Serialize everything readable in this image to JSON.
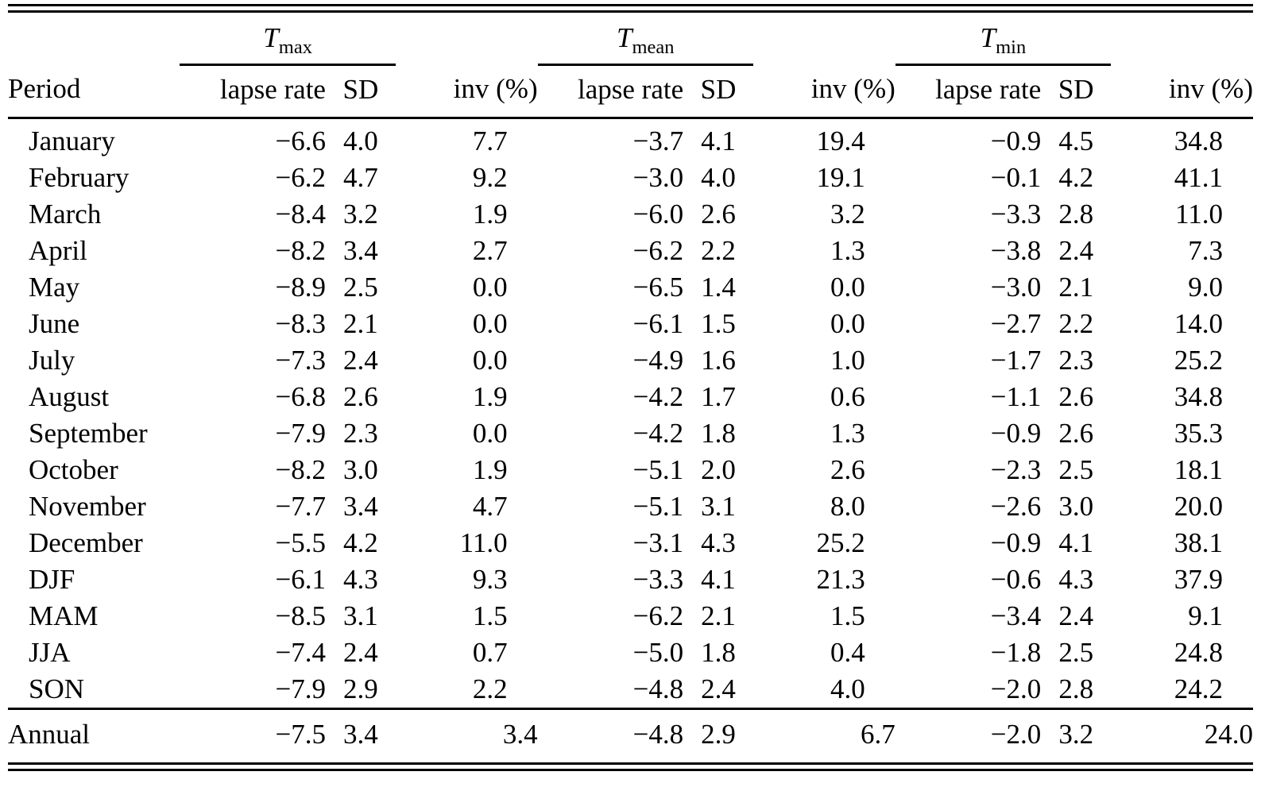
{
  "page": {
    "background": "#ffffff",
    "text_color": "#000000",
    "rule_color": "#000000"
  },
  "table": {
    "period_header": "Period",
    "groups": [
      {
        "main": "T",
        "sub": "max"
      },
      {
        "main": "T",
        "sub": "mean"
      },
      {
        "main": "T",
        "sub": "min"
      }
    ],
    "sub_headers": [
      "lapse rate",
      "SD",
      "inv (%)"
    ],
    "rows": [
      {
        "period": "January",
        "values": [
          "−6.6",
          "4.0",
          "7.7",
          "−3.7",
          "4.1",
          "19.4",
          "−0.9",
          "4.5",
          "34.8"
        ]
      },
      {
        "period": "February",
        "values": [
          "−6.2",
          "4.7",
          "9.2",
          "−3.0",
          "4.0",
          "19.1",
          "−0.1",
          "4.2",
          "41.1"
        ]
      },
      {
        "period": "March",
        "values": [
          "−8.4",
          "3.2",
          "1.9",
          "−6.0",
          "2.6",
          "3.2",
          "−3.3",
          "2.8",
          "11.0"
        ]
      },
      {
        "period": "April",
        "values": [
          "−8.2",
          "3.4",
          "2.7",
          "−6.2",
          "2.2",
          "1.3",
          "−3.8",
          "2.4",
          "7.3"
        ]
      },
      {
        "period": "May",
        "values": [
          "−8.9",
          "2.5",
          "0.0",
          "−6.5",
          "1.4",
          "0.0",
          "−3.0",
          "2.1",
          "9.0"
        ]
      },
      {
        "period": "June",
        "values": [
          "−8.3",
          "2.1",
          "0.0",
          "−6.1",
          "1.5",
          "0.0",
          "−2.7",
          "2.2",
          "14.0"
        ]
      },
      {
        "period": "July",
        "values": [
          "−7.3",
          "2.4",
          "0.0",
          "−4.9",
          "1.6",
          "1.0",
          "−1.7",
          "2.3",
          "25.2"
        ]
      },
      {
        "period": "August",
        "values": [
          "−6.8",
          "2.6",
          "1.9",
          "−4.2",
          "1.7",
          "0.6",
          "−1.1",
          "2.6",
          "34.8"
        ]
      },
      {
        "period": "September",
        "values": [
          "−7.9",
          "2.3",
          "0.0",
          "−4.2",
          "1.8",
          "1.3",
          "−0.9",
          "2.6",
          "35.3"
        ]
      },
      {
        "period": "October",
        "values": [
          "−8.2",
          "3.0",
          "1.9",
          "−5.1",
          "2.0",
          "2.6",
          "−2.3",
          "2.5",
          "18.1"
        ]
      },
      {
        "period": "November",
        "values": [
          "−7.7",
          "3.4",
          "4.7",
          "−5.1",
          "3.1",
          "8.0",
          "−2.6",
          "3.0",
          "20.0"
        ]
      },
      {
        "period": "December",
        "values": [
          "−5.5",
          "4.2",
          "11.0",
          "−3.1",
          "4.3",
          "25.2",
          "−0.9",
          "4.1",
          "38.1"
        ]
      },
      {
        "period": "DJF",
        "values": [
          "−6.1",
          "4.3",
          "9.3",
          "−3.3",
          "4.1",
          "21.3",
          "−0.6",
          "4.3",
          "37.9"
        ]
      },
      {
        "period": "MAM",
        "values": [
          "−8.5",
          "3.1",
          "1.5",
          "−6.2",
          "2.1",
          "1.5",
          "−3.4",
          "2.4",
          "9.1"
        ]
      },
      {
        "period": "JJA",
        "values": [
          "−7.4",
          "2.4",
          "0.7",
          "−5.0",
          "1.8",
          "0.4",
          "−1.8",
          "2.5",
          "24.8"
        ]
      },
      {
        "period": "SON",
        "values": [
          "−7.9",
          "2.9",
          "2.2",
          "−4.8",
          "2.4",
          "4.0",
          "−2.0",
          "2.8",
          "24.2"
        ]
      }
    ],
    "annual": {
      "period": "Annual",
      "values": [
        "−7.5",
        "3.4",
        "3.4",
        "−4.8",
        "2.9",
        "6.7",
        "−2.0",
        "3.2",
        "24.0"
      ]
    }
  }
}
